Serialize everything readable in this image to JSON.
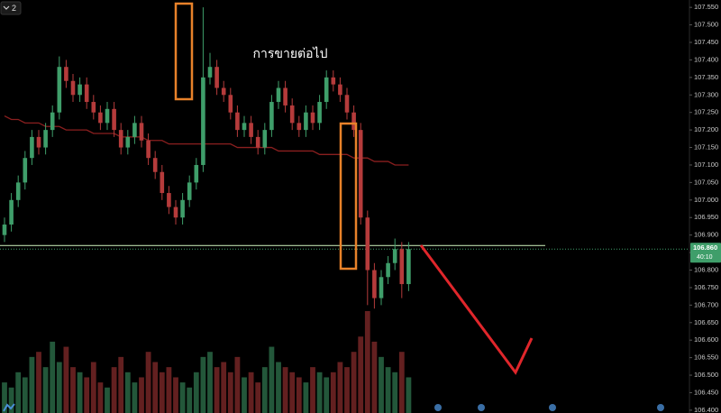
{
  "chart_data": {
    "type": "candlestick",
    "indicator_label": "2",
    "annotation": "การขายต่อไป",
    "up_color": "#3f9e6a",
    "down_color": "#b53b3b",
    "ma_color": "#8b1f1f",
    "open": [
      106.9,
      106.93,
      107.0,
      107.05,
      107.12,
      107.18,
      107.15,
      107.2,
      107.25,
      107.38,
      107.34,
      107.3,
      107.33,
      107.28,
      107.25,
      107.22,
      107.26,
      107.2,
      107.15,
      107.18,
      107.22,
      107.17,
      107.12,
      107.08,
      107.02,
      106.98,
      106.95,
      107.0,
      107.05,
      107.1,
      107.35,
      107.38,
      107.32,
      107.3,
      107.25,
      107.2,
      107.22,
      107.18,
      107.15,
      107.2,
      107.28,
      107.32,
      107.27,
      107.22,
      107.2,
      107.25,
      107.22,
      107.28,
      107.35,
      107.33,
      107.3,
      107.25,
      107.2,
      106.95,
      106.8,
      106.72,
      106.78,
      106.82,
      106.86,
      106.76
    ],
    "high": [
      106.95,
      107.02,
      107.07,
      107.14,
      107.2,
      107.2,
      107.22,
      107.27,
      107.41,
      107.4,
      107.36,
      107.35,
      107.35,
      107.3,
      107.27,
      107.28,
      107.28,
      107.22,
      107.2,
      107.24,
      107.24,
      107.19,
      107.14,
      107.1,
      107.04,
      107.0,
      107.02,
      107.07,
      107.12,
      107.55,
      107.42,
      107.4,
      107.34,
      107.32,
      107.27,
      107.24,
      107.24,
      107.2,
      107.22,
      107.3,
      107.34,
      107.34,
      107.29,
      107.24,
      107.27,
      107.27,
      107.3,
      107.37,
      107.37,
      107.35,
      107.32,
      107.27,
      107.22,
      106.97,
      106.82,
      106.8,
      106.84,
      106.89,
      106.88,
      106.88
    ],
    "low": [
      106.88,
      106.91,
      106.98,
      107.03,
      107.1,
      107.13,
      107.13,
      107.18,
      107.23,
      107.32,
      107.28,
      107.28,
      107.26,
      107.23,
      107.2,
      107.2,
      107.18,
      107.13,
      107.13,
      107.16,
      107.15,
      107.1,
      107.06,
      107.0,
      106.96,
      106.93,
      106.93,
      106.98,
      107.03,
      107.08,
      107.33,
      107.3,
      107.28,
      107.23,
      107.18,
      107.18,
      107.16,
      107.13,
      107.13,
      107.18,
      107.26,
      107.25,
      107.2,
      107.18,
      107.18,
      107.2,
      107.2,
      107.26,
      107.31,
      107.28,
      107.23,
      107.18,
      106.93,
      106.7,
      106.69,
      106.7,
      106.76,
      106.8,
      106.72,
      106.74
    ],
    "close": [
      106.93,
      107.0,
      107.05,
      107.12,
      107.18,
      107.15,
      107.2,
      107.25,
      107.38,
      107.34,
      107.3,
      107.33,
      107.28,
      107.25,
      107.22,
      107.26,
      107.2,
      107.15,
      107.18,
      107.22,
      107.17,
      107.12,
      107.08,
      107.02,
      106.98,
      106.95,
      107.0,
      107.05,
      107.1,
      107.35,
      107.38,
      107.32,
      107.3,
      107.25,
      107.2,
      107.22,
      107.18,
      107.15,
      107.2,
      107.28,
      107.32,
      107.27,
      107.22,
      107.2,
      107.25,
      107.22,
      107.28,
      107.35,
      107.33,
      107.3,
      107.25,
      107.2,
      106.95,
      106.8,
      106.72,
      106.78,
      106.82,
      106.86,
      106.76,
      106.86
    ],
    "volume": [
      30,
      25,
      40,
      35,
      55,
      60,
      45,
      70,
      50,
      65,
      45,
      40,
      35,
      50,
      30,
      25,
      45,
      55,
      40,
      30,
      35,
      60,
      50,
      40,
      45,
      35,
      30,
      25,
      40,
      55,
      60,
      45,
      50,
      40,
      55,
      35,
      40,
      30,
      45,
      65,
      50,
      45,
      40,
      35,
      30,
      45,
      40,
      35,
      40,
      50,
      45,
      60,
      75,
      100,
      70,
      55,
      45,
      40,
      60,
      35
    ],
    "ma": [
      107.24,
      107.23,
      107.23,
      107.22,
      107.22,
      107.22,
      107.21,
      107.21,
      107.21,
      107.2,
      107.2,
      107.2,
      107.2,
      107.19,
      107.19,
      107.19,
      107.19,
      107.18,
      107.18,
      107.18,
      107.18,
      107.17,
      107.17,
      107.17,
      107.16,
      107.16,
      107.16,
      107.16,
      107.16,
      107.16,
      107.16,
      107.16,
      107.16,
      107.16,
      107.15,
      107.15,
      107.15,
      107.15,
      107.15,
      107.15,
      107.14,
      107.14,
      107.14,
      107.14,
      107.14,
      107.14,
      107.13,
      107.13,
      107.13,
      107.13,
      107.13,
      107.12,
      107.12,
      107.12,
      107.11,
      107.11,
      107.11,
      107.1,
      107.1,
      107.1
    ],
    "level_line": 106.87,
    "current_price": {
      "value": 106.86,
      "label": "106.860"
    },
    "countdown": "40:10",
    "ylim": [
      106.392,
      107.571
    ],
    "yticks": [
      {
        "value": 107.55,
        "label": "107.550"
      },
      {
        "value": 107.5,
        "label": "107.500"
      },
      {
        "value": 107.45,
        "label": "107.450"
      },
      {
        "value": 107.4,
        "label": "107.400"
      },
      {
        "value": 107.35,
        "label": "107.350"
      },
      {
        "value": 107.3,
        "label": "107.300"
      },
      {
        "value": 107.25,
        "label": "107.250"
      },
      {
        "value": 107.2,
        "label": "107.200"
      },
      {
        "value": 107.15,
        "label": "107.150"
      },
      {
        "value": 107.1,
        "label": "107.100"
      },
      {
        "value": 107.05,
        "label": "107.050"
      },
      {
        "value": 107.0,
        "label": "107.000"
      },
      {
        "value": 106.95,
        "label": "106.950"
      },
      {
        "value": 106.9,
        "label": "106.900"
      },
      {
        "value": 106.85,
        "label": "106.850"
      },
      {
        "value": 106.8,
        "label": "106.800"
      },
      {
        "value": 106.75,
        "label": "106.750"
      },
      {
        "value": 106.7,
        "label": "106.700"
      },
      {
        "value": 106.65,
        "label": "106.650"
      },
      {
        "value": 106.6,
        "label": "106.600"
      },
      {
        "value": 106.55,
        "label": "106.550"
      },
      {
        "value": 106.5,
        "label": "106.500"
      },
      {
        "value": 106.45,
        "label": "106.450"
      },
      {
        "value": 106.4,
        "label": "106.400"
      }
    ]
  }
}
